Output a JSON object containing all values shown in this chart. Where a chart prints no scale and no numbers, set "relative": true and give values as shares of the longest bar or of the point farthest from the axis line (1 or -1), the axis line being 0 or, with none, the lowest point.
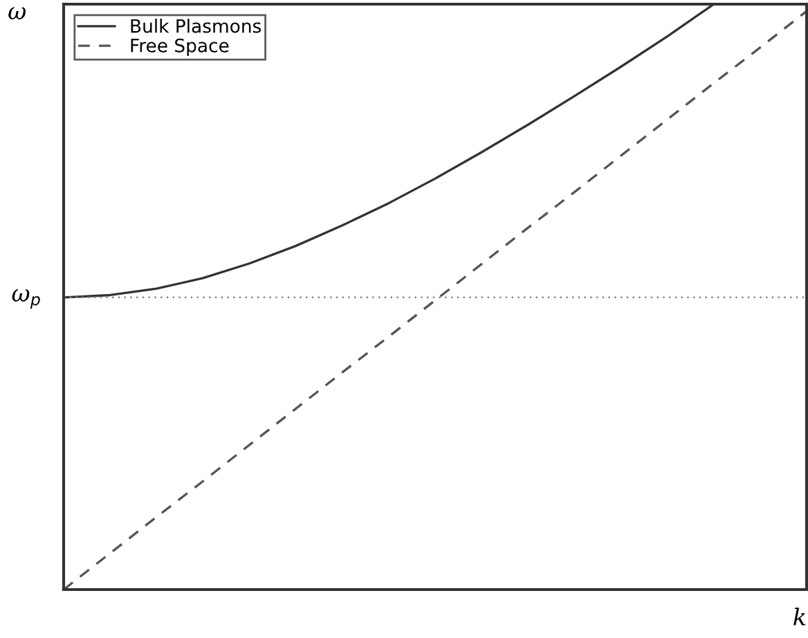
{
  "chart_data": {
    "type": "line",
    "relative": true,
    "xlabel": "k",
    "ylabel": "ω",
    "legend": "top left",
    "categories": [
      null,
      null,
      null,
      null,
      null,
      null,
      null,
      null,
      null,
      null,
      null,
      null,
      null,
      null,
      null,
      null,
      null
    ],
    "series": [
      {
        "name": "Bulk Plasmons",
        "color": "#333333",
        "line_style": "solid",
        "values": [
          0.499,
          0.503,
          0.514,
          0.532,
          0.557,
          0.587,
          0.622,
          0.66,
          0.702,
          0.747,
          0.794,
          0.843,
          0.893,
          0.945,
          1.0,
          null,
          null
        ]
      },
      {
        "name": "Free Space",
        "color": "#555555",
        "line_style": "dashed",
        "values": [
          0,
          0.062,
          0.124,
          0.185,
          0.247,
          0.309,
          0.371,
          0.432,
          0.494,
          0.556,
          0.618,
          0.679,
          0.741,
          0.803,
          0.865,
          0.926,
          0.988
        ]
      }
    ],
    "ref_lines": [
      {
        "axis": "y",
        "value": 0.499,
        "label": "ω$_{p}$",
        "color": "#888888",
        "line_style": "dotted"
      }
    ]
  }
}
